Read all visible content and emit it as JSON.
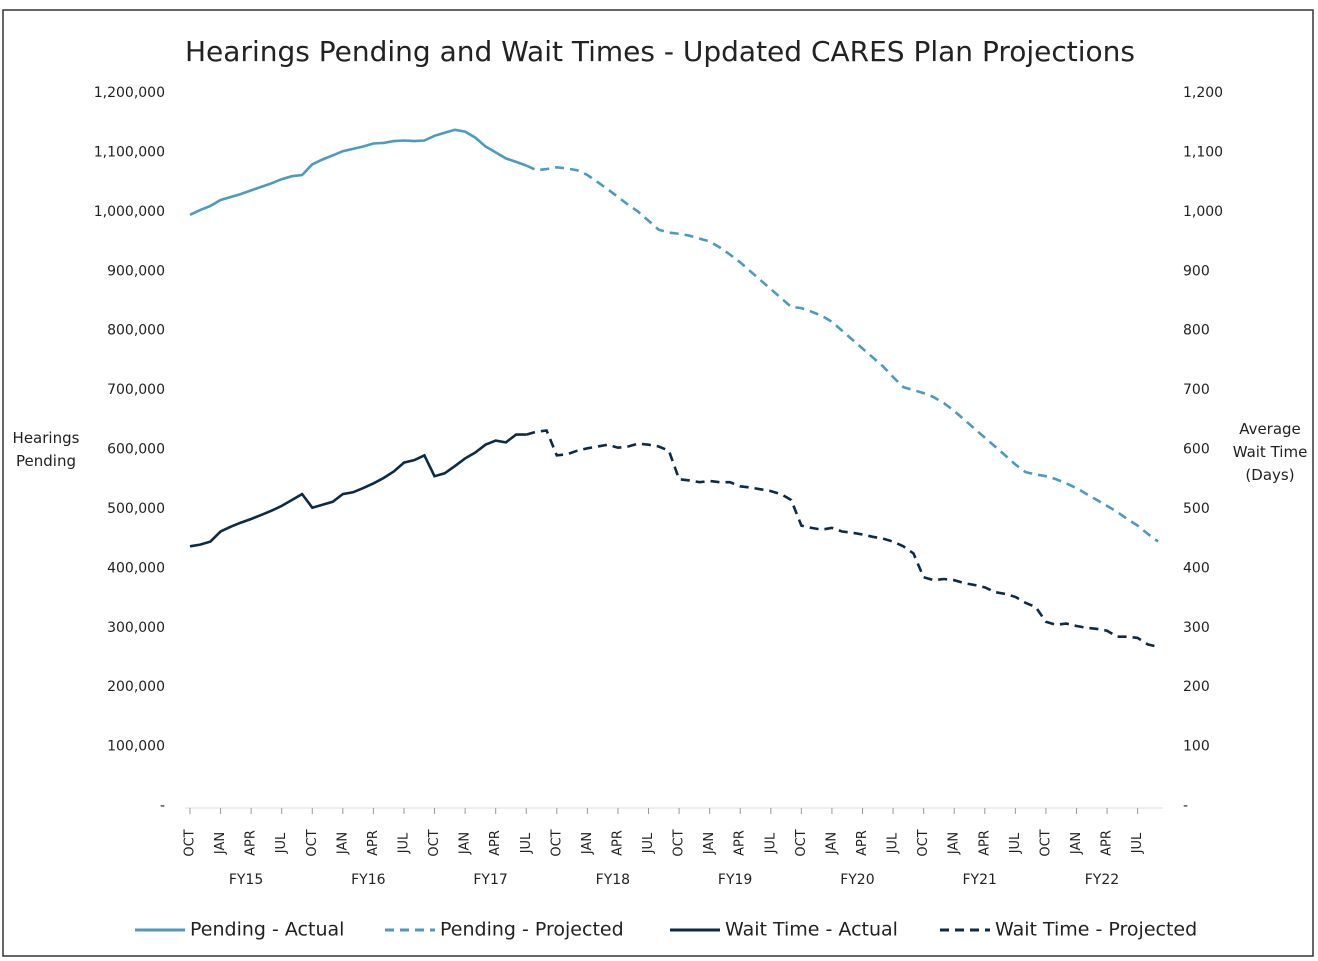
{
  "chart_data": {
    "type": "line",
    "title": "Hearings Pending and Wait Times - Updated CARES Plan Projections",
    "y_label": "Hearings Pending",
    "y2_label": "Average Wait Time (Days)",
    "categories": [
      "OCT",
      null,
      null,
      "JAN",
      null,
      null,
      "APR",
      null,
      null,
      "JUL",
      null,
      null,
      "OCT",
      null,
      null,
      "JAN",
      null,
      null,
      "APR",
      null,
      null,
      "JUL",
      null,
      null,
      "OCT",
      null,
      null,
      "JAN",
      null,
      null,
      "APR",
      null,
      null,
      "JUL",
      null,
      null,
      "OCT",
      null,
      null,
      "JAN",
      null,
      null,
      "APR",
      null,
      null,
      "JUL",
      null,
      null,
      "OCT",
      null,
      null,
      "JAN",
      null,
      null,
      "APR",
      null,
      null,
      "JUL",
      null,
      null,
      "OCT",
      null,
      null,
      "JAN",
      null,
      null,
      "APR",
      null,
      null,
      "JUL",
      null,
      null,
      "OCT",
      null,
      null,
      "JAN",
      null,
      null,
      "APR",
      null,
      null,
      "JUL",
      null,
      null,
      "OCT",
      null,
      null,
      "JAN",
      null,
      null,
      "APR",
      null,
      null,
      "JUL",
      null,
      null
    ],
    "fiscal_years": [
      "FY15",
      "FY16",
      "FY17",
      "FY18",
      "FY19",
      "FY20",
      "FY21",
      "FY22"
    ],
    "ylim": [
      0,
      1200000
    ],
    "yticks": [
      {
        "value": 0,
        "label": "-"
      },
      {
        "value": 100000,
        "label": "100,000"
      },
      {
        "value": 200000,
        "label": "200,000"
      },
      {
        "value": 300000,
        "label": "300,000"
      },
      {
        "value": 400000,
        "label": "400,000"
      },
      {
        "value": 500000,
        "label": "500,000"
      },
      {
        "value": 600000,
        "label": "600,000"
      },
      {
        "value": 700000,
        "label": "700,000"
      },
      {
        "value": 800000,
        "label": "800,000"
      },
      {
        "value": 900000,
        "label": "900,000"
      },
      {
        "value": 1000000,
        "label": "1,000,000"
      },
      {
        "value": 1100000,
        "label": "1,100,000"
      },
      {
        "value": 1200000,
        "label": "1,200,000"
      }
    ],
    "y2lim": [
      0,
      1200
    ],
    "y2ticks": [
      {
        "value": 0,
        "label": "-"
      },
      100,
      200,
      300,
      400,
      500,
      600,
      700,
      800,
      900,
      {
        "value": 1000,
        "label": "1,000"
      },
      {
        "value": 1100,
        "label": "1,100"
      },
      {
        "value": 1200,
        "label": "1,200"
      }
    ],
    "series": [
      {
        "name": "Pending - Actual",
        "color": "#4a9bbf",
        "dashed": false,
        "values": [
          995000,
          1003000,
          1010000,
          1020000,
          1025000,
          1030000,
          1036000,
          1042000,
          1048000,
          1055000,
          1060000,
          1062000,
          1080000,
          1088000,
          1095000,
          1102000,
          1106000,
          1110000,
          1115000,
          1116000,
          1119000,
          1120000,
          1119000,
          1120000,
          1128000,
          1133000,
          1138000,
          1135000,
          1125000,
          1110000,
          1100000,
          1090000,
          1084000,
          1078000,
          null,
          null,
          null,
          null,
          null,
          null,
          null,
          null,
          null,
          null,
          null,
          null,
          null,
          null,
          null,
          null,
          null,
          null,
          null,
          null,
          null,
          null,
          null,
          null,
          null,
          null,
          null,
          null,
          null,
          null,
          null,
          null,
          null,
          null,
          null,
          null,
          null,
          null,
          null,
          null,
          null,
          null,
          null,
          null,
          null,
          null,
          null,
          null,
          null,
          null,
          null,
          null,
          null,
          null,
          null,
          null,
          null,
          null,
          null,
          null,
          null,
          null
        ]
      },
      {
        "name": "Pending - Projected",
        "color": "#4a9bbf",
        "dashed": true,
        "values": [
          null,
          null,
          null,
          null,
          null,
          null,
          null,
          null,
          null,
          null,
          null,
          null,
          null,
          null,
          null,
          null,
          null,
          null,
          null,
          null,
          null,
          null,
          null,
          null,
          null,
          null,
          null,
          null,
          null,
          null,
          null,
          null,
          null,
          1078000,
          1070000,
          1072000,
          1075000,
          1073000,
          1070000,
          1062000,
          1050000,
          1038000,
          1025000,
          1012000,
          1000000,
          985000,
          970000,
          965000,
          963000,
          960000,
          955000,
          950000,
          940000,
          928000,
          915000,
          900000,
          885000,
          870000,
          855000,
          840000,
          838000,
          832000,
          825000,
          815000,
          800000,
          785000,
          770000,
          755000,
          740000,
          722000,
          705000,
          700000,
          695000,
          688000,
          678000,
          665000,
          650000,
          635000,
          620000,
          605000,
          590000,
          575000,
          562000,
          558000,
          555000,
          550000,
          543000,
          535000,
          525000,
          515000,
          505000,
          495000,
          483000,
          472000,
          458000,
          445000
        ]
      },
      {
        "name": "Wait Time - Actual",
        "color": "#0d2b45",
        "dashed": false,
        "axis": "y2",
        "values": [
          437,
          440,
          445,
          462,
          470,
          477,
          483,
          490,
          497,
          505,
          515,
          525,
          502,
          507,
          512,
          525,
          528,
          535,
          543,
          552,
          563,
          578,
          582,
          590,
          555,
          560,
          572,
          585,
          595,
          608,
          615,
          612,
          625,
          625,
          null,
          null,
          null,
          null,
          null,
          null,
          null,
          null,
          null,
          null,
          null,
          null,
          null,
          null,
          null,
          null,
          null,
          null,
          null,
          null,
          null,
          null,
          null,
          null,
          null,
          null,
          null,
          null,
          null,
          null,
          null,
          null,
          null,
          null,
          null,
          null,
          null,
          null,
          null,
          null,
          null,
          null,
          null,
          null,
          null,
          null,
          null,
          null,
          null,
          null,
          null,
          null,
          null,
          null,
          null,
          null,
          null,
          null,
          null,
          null,
          null,
          null
        ]
      },
      {
        "name": "Wait Time - Projected",
        "color": "#0d2b45",
        "dashed": true,
        "axis": "y2",
        "values": [
          null,
          null,
          null,
          null,
          null,
          null,
          null,
          null,
          null,
          null,
          null,
          null,
          null,
          null,
          null,
          null,
          null,
          null,
          null,
          null,
          null,
          null,
          null,
          null,
          null,
          null,
          null,
          null,
          null,
          null,
          null,
          null,
          null,
          625,
          630,
          632,
          590,
          592,
          598,
          602,
          605,
          608,
          603,
          605,
          610,
          608,
          605,
          598,
          550,
          548,
          545,
          547,
          545,
          545,
          538,
          536,
          533,
          530,
          525,
          515,
          472,
          468,
          465,
          468,
          462,
          460,
          457,
          453,
          450,
          445,
          437,
          425,
          385,
          380,
          382,
          380,
          375,
          372,
          368,
          360,
          357,
          352,
          342,
          335,
          310,
          305,
          307,
          303,
          300,
          298,
          295,
          285,
          285,
          283,
          272,
          268
        ]
      }
    ]
  }
}
